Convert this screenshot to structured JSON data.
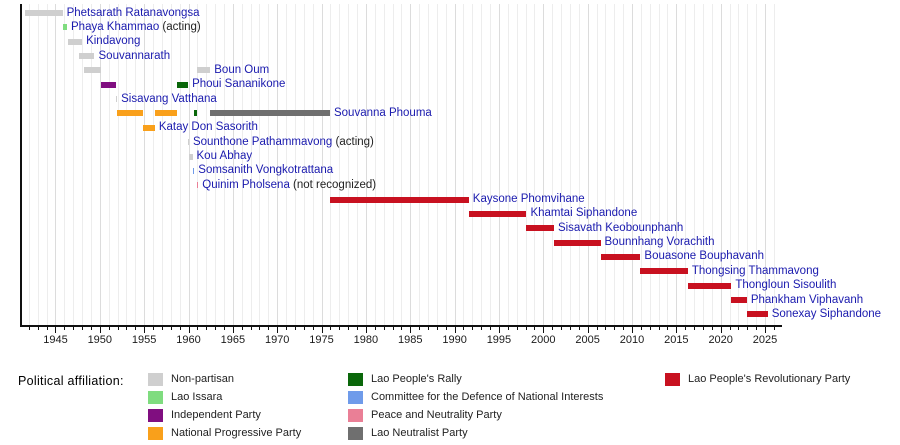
{
  "chart_data": {
    "type": "bar",
    "subtype": "horizontal-timeline-gantt",
    "title": "",
    "xlabel": "",
    "ylabel": "",
    "axis": {
      "min_year": 1941.0,
      "max_year": 2026.8,
      "tick_label_years": [
        1945,
        1950,
        1955,
        1960,
        1965,
        1970,
        1975,
        1980,
        1985,
        1990,
        1995,
        2000,
        2005,
        2010,
        2015,
        2020,
        2025
      ],
      "minor_tick_every_years": 1,
      "grid": true
    },
    "parties": {
      "non-partisan": {
        "label": "Non-partisan",
        "color": "#cfcfcf"
      },
      "lao-issara": {
        "label": "Lao Issara",
        "color": "#7fdc7f"
      },
      "independent": {
        "label": "Independent Party",
        "color": "#800e80"
      },
      "national-progressive": {
        "label": "National Progressive Party",
        "color": "#f9a01b"
      },
      "lao-peoples-rally": {
        "label": "Lao People's Rally",
        "color": "#0a670a"
      },
      "cdni": {
        "label": "Committee for the Defence of National Interests",
        "color": "#6f9bea"
      },
      "peace-neutrality": {
        "label": "Peace and Neutrality Party",
        "color": "#ea7f96"
      },
      "lao-neutralist": {
        "label": "Lao Neutralist Party",
        "color": "#6f6f6f"
      },
      "lprp": {
        "label": "Lao People's Revolutionary Party",
        "color": "#c81120"
      }
    },
    "rows": [
      {
        "name": "Phetsarath Ratanavongsa",
        "suffix": "",
        "segments": [
          {
            "start": 1941.6,
            "end": 1945.8,
            "party": "non-partisan"
          }
        ]
      },
      {
        "name": "Phaya Khammao",
        "suffix": "(acting)",
        "segments": [
          {
            "start": 1945.8,
            "end": 1946.3,
            "party": "lao-issara"
          }
        ]
      },
      {
        "name": "Kindavong",
        "suffix": "",
        "segments": [
          {
            "start": 1946.4,
            "end": 1948.0,
            "party": "non-partisan"
          }
        ]
      },
      {
        "name": "Souvannarath",
        "suffix": "",
        "segments": [
          {
            "start": 1947.6,
            "end": 1949.4,
            "party": "non-partisan"
          }
        ]
      },
      {
        "name": "Boun Oum",
        "suffix": "",
        "segments": [
          {
            "start": 1948.2,
            "end": 1950.15,
            "party": "non-partisan"
          },
          {
            "start": 1960.95,
            "end": 1962.45,
            "party": "non-partisan"
          }
        ]
      },
      {
        "name": "Phoui Sananikone",
        "suffix": "",
        "segments": [
          {
            "start": 1950.15,
            "end": 1951.8,
            "party": "independent"
          },
          {
            "start": 1958.65,
            "end": 1959.95,
            "party": "lao-peoples-rally"
          }
        ]
      },
      {
        "name": "Sisavang Vatthana",
        "suffix": "",
        "segments": [
          {
            "start": 1951.8,
            "end": 1951.95,
            "party": "non-partisan"
          }
        ]
      },
      {
        "name": "Souvanna Phouma",
        "suffix": "",
        "segments": [
          {
            "start": 1951.95,
            "end": 1954.85,
            "party": "national-progressive"
          },
          {
            "start": 1956.2,
            "end": 1958.65,
            "party": "national-progressive"
          },
          {
            "start": 1960.6,
            "end": 1960.95,
            "party": "lao-peoples-rally"
          },
          {
            "start": 1962.45,
            "end": 1975.95,
            "party": "lao-neutralist"
          }
        ]
      },
      {
        "name": "Katay Don Sasorith",
        "suffix": "",
        "segments": [
          {
            "start": 1954.85,
            "end": 1956.2,
            "party": "national-progressive"
          }
        ]
      },
      {
        "name": "Sounthone Pathammavong",
        "suffix": "(acting)",
        "segments": [
          {
            "start": 1959.9,
            "end": 1960.05,
            "party": "non-partisan"
          }
        ]
      },
      {
        "name": "Kou Abhay",
        "suffix": "",
        "segments": [
          {
            "start": 1960.0,
            "end": 1960.45,
            "party": "non-partisan"
          }
        ]
      },
      {
        "name": "Somsanith Vongkotrattana",
        "suffix": "",
        "segments": [
          {
            "start": 1960.45,
            "end": 1960.65,
            "party": "cdni"
          }
        ]
      },
      {
        "name": "Quinim Pholsena",
        "suffix": "(not recognized)",
        "segments": [
          {
            "start": 1960.9,
            "end": 1961.1,
            "party": "peace-neutrality"
          }
        ]
      },
      {
        "name": "Kaysone Phomvihane",
        "suffix": "",
        "segments": [
          {
            "start": 1975.95,
            "end": 1991.6,
            "party": "lprp"
          }
        ]
      },
      {
        "name": "Khamtai Siphandone",
        "suffix": "",
        "segments": [
          {
            "start": 1991.6,
            "end": 1998.1,
            "party": "lprp"
          }
        ]
      },
      {
        "name": "Sisavath Keobounphanh",
        "suffix": "",
        "segments": [
          {
            "start": 1998.1,
            "end": 2001.2,
            "party": "lprp"
          }
        ]
      },
      {
        "name": "Bounnhang Vorachith",
        "suffix": "",
        "segments": [
          {
            "start": 2001.2,
            "end": 2006.45,
            "party": "lprp"
          }
        ]
      },
      {
        "name": "Bouasone Bouphavanh",
        "suffix": "",
        "segments": [
          {
            "start": 2006.45,
            "end": 2010.95,
            "party": "lprp"
          }
        ]
      },
      {
        "name": "Thongsing Thammavong",
        "suffix": "",
        "segments": [
          {
            "start": 2010.95,
            "end": 2016.3,
            "party": "lprp"
          }
        ]
      },
      {
        "name": "Thongloun Sisoulith",
        "suffix": "",
        "segments": [
          {
            "start": 2016.3,
            "end": 2021.2,
            "party": "lprp"
          }
        ]
      },
      {
        "name": "Phankham Viphavanh",
        "suffix": "",
        "segments": [
          {
            "start": 2021.2,
            "end": 2022.95,
            "party": "lprp"
          }
        ]
      },
      {
        "name": "Sonexay Siphandone",
        "suffix": "",
        "segments": [
          {
            "start": 2022.95,
            "end": 2025.3,
            "party": "lprp"
          }
        ]
      }
    ]
  },
  "legend": {
    "title": "Political affiliation:",
    "columns": [
      [
        "non-partisan",
        "lao-issara",
        "independent",
        "national-progressive"
      ],
      [
        "lao-peoples-rally",
        "cdni",
        "peace-neutrality",
        "lao-neutralist"
      ],
      [
        "lprp"
      ]
    ]
  },
  "styles": {
    "name_color": "#1a1aae",
    "suffix_color": "#222222",
    "tick_label_color": "#1a1a1a",
    "axis_color": "#111111",
    "grid_minor_color": "#ededed",
    "grid_major_color": "#dcdcdc"
  }
}
